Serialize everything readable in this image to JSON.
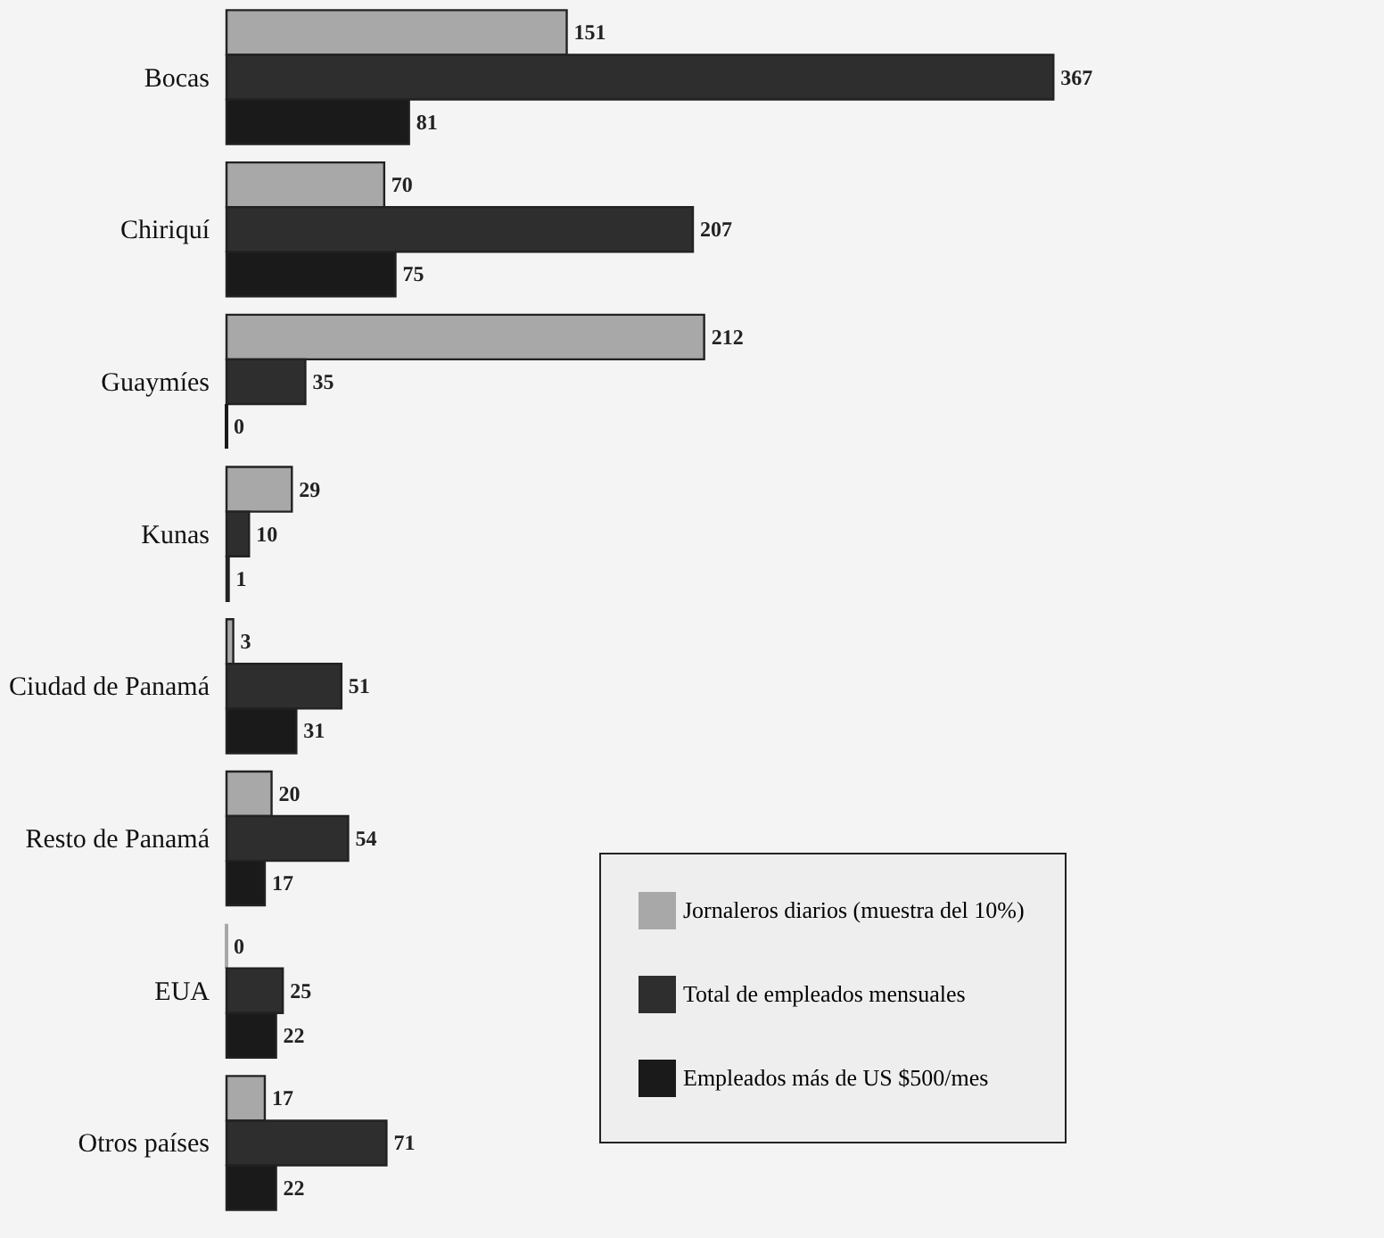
{
  "chart_data": {
    "type": "bar",
    "orientation": "horizontal",
    "categories": [
      "Bocas",
      "Chiriquí",
      "Guaymíes",
      "Kunas",
      "Ciudad de Panamá",
      "Resto de Panamá",
      "EUA",
      "Otros países"
    ],
    "series": [
      {
        "name": "Jornaleros diarios (muestra del 10%)",
        "color": "#a8a8a8",
        "values": [
          151,
          70,
          212,
          29,
          3,
          20,
          0,
          17
        ]
      },
      {
        "name": "Total de empleados mensuales",
        "color": "#2e2e2e",
        "values": [
          367,
          207,
          35,
          10,
          51,
          54,
          25,
          71
        ]
      },
      {
        "name": "Empleados más de US $500/mes",
        "color": "#1a1a1a",
        "values": [
          81,
          75,
          0,
          1,
          31,
          17,
          22,
          22
        ]
      }
    ],
    "data_labels": true,
    "legend": "bottom right"
  }
}
